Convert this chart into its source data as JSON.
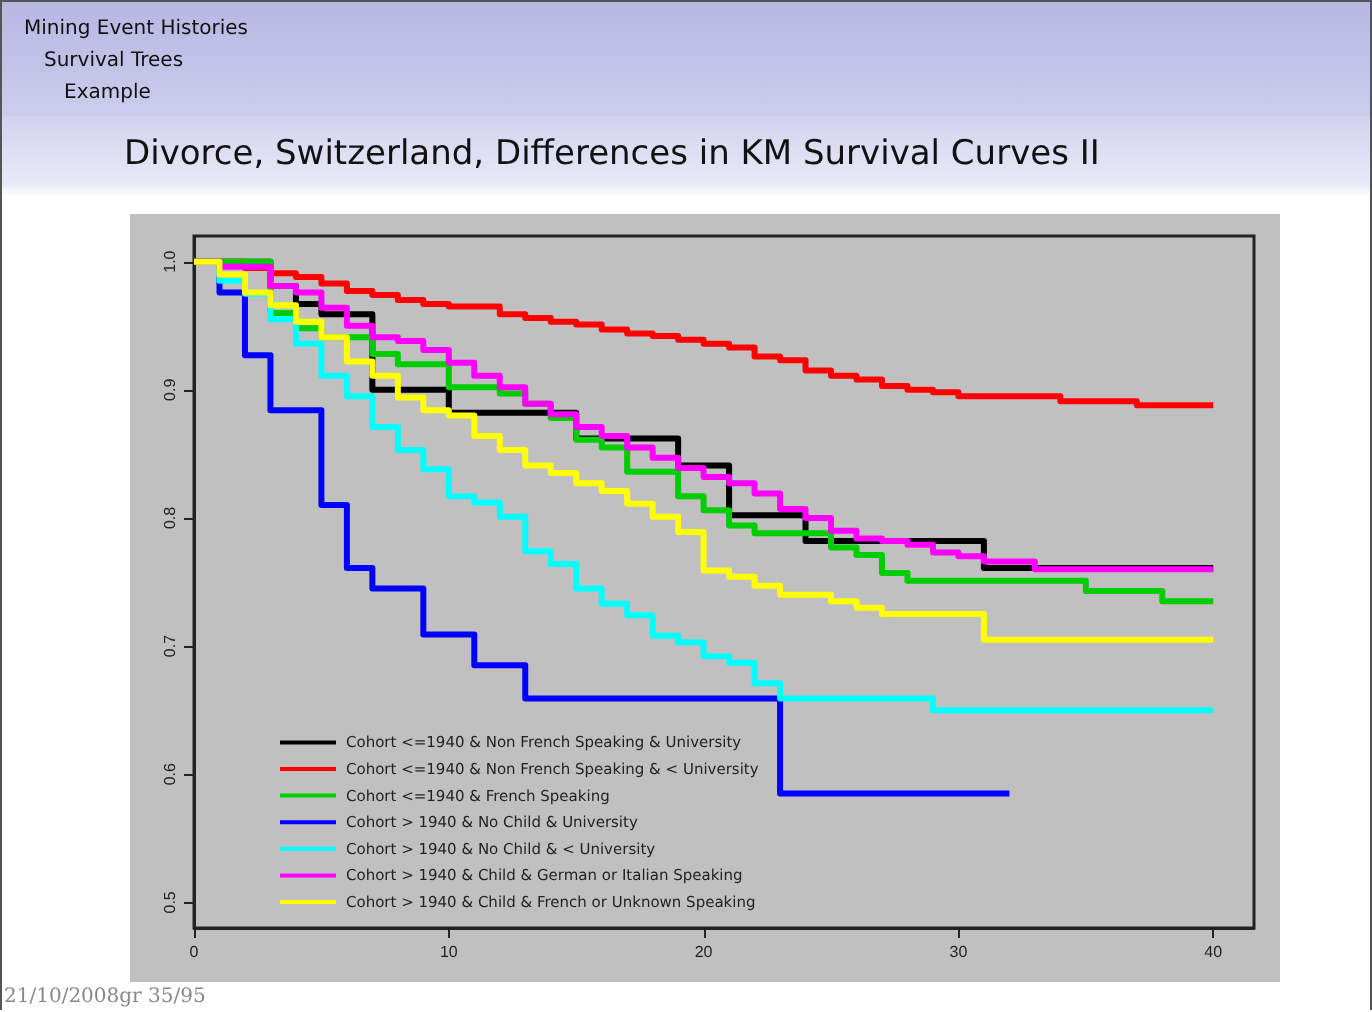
{
  "chart_data": {
    "type": "step",
    "title": "Divorce, Switzerland, Differences in KM Survival Curves II",
    "annotations": [
      "Mining Event Histories",
      "Survival Trees",
      "Example",
      "21/10/2008gr 35/95"
    ],
    "xlim": [
      0,
      41.6
    ],
    "xticks": [
      0,
      10,
      20,
      30,
      40
    ],
    "ylim": [
      0.48,
      1.02
    ],
    "yticks": [
      0.5,
      0.6,
      0.7,
      0.8,
      0.9,
      {
        "value": 1,
        "label": "1.0"
      }
    ],
    "grid": false,
    "legend": "bottom left",
    "line_style": "solid",
    "series": [
      {
        "name": "Cohort <=1940 & Non French Speaking & University",
        "color": "#000000",
        "x": [
          0,
          3,
          4,
          5,
          7,
          10,
          15,
          19,
          21,
          24,
          31,
          40
        ],
        "values": [
          1,
          0.981,
          0.967,
          0.959,
          0.9,
          0.882,
          0.862,
          0.841,
          0.802,
          0.782,
          0.761,
          0.761
        ]
      },
      {
        "name": "Cohort <=1940 & Non French Speaking & < University",
        "color": "#ff0000",
        "x": [
          0,
          2,
          3,
          4,
          5,
          6,
          7,
          8,
          9,
          10,
          12,
          13,
          14,
          15,
          16,
          17,
          18,
          19,
          20,
          21,
          22,
          23,
          24,
          25,
          26,
          27,
          28,
          29,
          30,
          34,
          37,
          40
        ],
        "values": [
          1,
          0.995,
          0.991,
          0.988,
          0.983,
          0.977,
          0.974,
          0.97,
          0.967,
          0.965,
          0.959,
          0.956,
          0.953,
          0.951,
          0.947,
          0.944,
          0.942,
          0.939,
          0.936,
          0.933,
          0.926,
          0.923,
          0.915,
          0.911,
          0.908,
          0.903,
          0.9,
          0.898,
          0.895,
          0.891,
          0.888,
          0.888
        ]
      },
      {
        "name": "Cohort <=1940 & French Speaking",
        "color": "#00cd00",
        "x": [
          0,
          3,
          4,
          5,
          7,
          8,
          10,
          12,
          13,
          14,
          15,
          16,
          17,
          19,
          20,
          21,
          22,
          25,
          26,
          27,
          28,
          35,
          38,
          40
        ],
        "values": [
          1,
          0.96,
          0.948,
          0.941,
          0.928,
          0.92,
          0.902,
          0.897,
          0.889,
          0.878,
          0.861,
          0.855,
          0.836,
          0.817,
          0.806,
          0.794,
          0.788,
          0.777,
          0.771,
          0.757,
          0.751,
          0.743,
          0.735,
          0.735
        ]
      },
      {
        "name": "Cohort > 1940 & No Child & University",
        "color": "#0000ff",
        "x": [
          0,
          1,
          2,
          3,
          5,
          6,
          7,
          9,
          11,
          13,
          23,
          32
        ],
        "values": [
          1,
          0.976,
          0.927,
          0.884,
          0.81,
          0.761,
          0.745,
          0.709,
          0.685,
          0.659,
          0.585,
          0.585
        ]
      },
      {
        "name": "Cohort > 1940 & No Child & < University",
        "color": "#00ffff",
        "x": [
          0,
          1,
          2,
          3,
          4,
          5,
          6,
          7,
          8,
          9,
          10,
          11,
          12,
          13,
          14,
          15,
          16,
          17,
          18,
          19,
          20,
          21,
          22,
          23,
          29,
          40
        ],
        "values": [
          1,
          0.985,
          0.975,
          0.955,
          0.936,
          0.911,
          0.895,
          0.871,
          0.853,
          0.838,
          0.817,
          0.812,
          0.801,
          0.774,
          0.764,
          0.745,
          0.733,
          0.724,
          0.708,
          0.703,
          0.692,
          0.687,
          0.671,
          0.659,
          0.65,
          0.65
        ]
      },
      {
        "name": "Cohort > 1940 & Child & German or Italian Speaking",
        "color": "#ff00ff",
        "x": [
          0,
          1,
          3,
          4,
          5,
          6,
          7,
          8,
          9,
          10,
          11,
          12,
          13,
          14,
          15,
          16,
          17,
          18,
          19,
          20,
          21,
          22,
          23,
          24,
          25,
          26,
          27,
          28,
          29,
          30,
          31,
          33,
          40
        ],
        "values": [
          1,
          0.996,
          0.981,
          0.976,
          0.964,
          0.95,
          0.941,
          0.938,
          0.931,
          0.921,
          0.911,
          0.902,
          0.889,
          0.881,
          0.871,
          0.864,
          0.855,
          0.847,
          0.839,
          0.832,
          0.827,
          0.819,
          0.807,
          0.8,
          0.79,
          0.784,
          0.782,
          0.779,
          0.773,
          0.77,
          0.766,
          0.76,
          0.76
        ]
      },
      {
        "name": "Cohort > 1940 & Child & French or Unknown Speaking",
        "color": "#ffff00",
        "x": [
          0,
          1,
          2,
          3,
          4,
          5,
          6,
          7,
          8,
          9,
          10,
          11,
          12,
          13,
          14,
          15,
          16,
          17,
          18,
          19,
          20,
          21,
          22,
          23,
          25,
          26,
          27,
          31,
          40
        ],
        "values": [
          1,
          0.99,
          0.976,
          0.966,
          0.953,
          0.941,
          0.922,
          0.911,
          0.894,
          0.884,
          0.88,
          0.864,
          0.853,
          0.841,
          0.835,
          0.827,
          0.821,
          0.811,
          0.801,
          0.789,
          0.759,
          0.754,
          0.747,
          0.74,
          0.735,
          0.73,
          0.725,
          0.705,
          0.705
        ]
      }
    ]
  }
}
